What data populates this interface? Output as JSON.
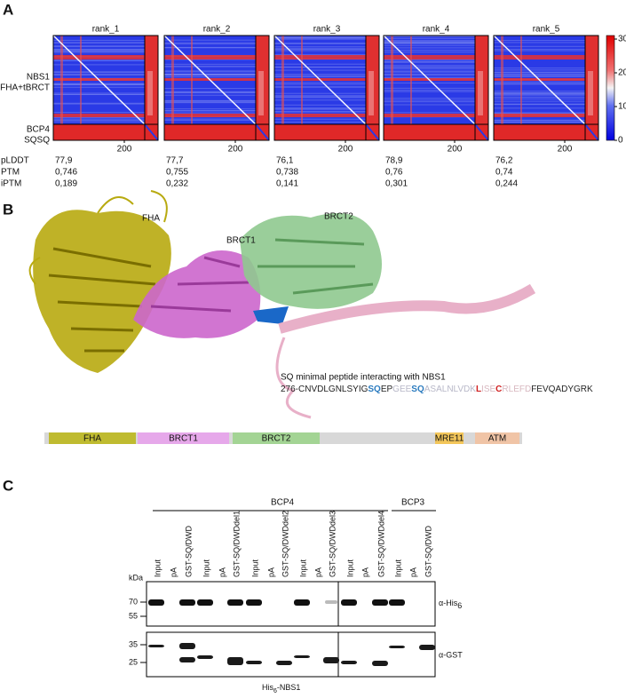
{
  "panel_a": {
    "letter": "A",
    "ranks": [
      {
        "name": "rank_1",
        "x_tick": "200",
        "plddt": "77,9",
        "ptm": "0,746",
        "iptm": "0,189"
      },
      {
        "name": "rank_2",
        "x_tick": "200",
        "plddt": "77,7",
        "ptm": "0,755",
        "iptm": "0,232"
      },
      {
        "name": "rank_3",
        "x_tick": "200",
        "plddt": "76,1",
        "ptm": "0,738",
        "iptm": "0,141"
      },
      {
        "name": "rank_4",
        "x_tick": "200",
        "plddt": "78,9",
        "ptm": "0,76",
        "iptm": "0,301"
      },
      {
        "name": "rank_5",
        "x_tick": "200",
        "plddt": "76,2",
        "ptm": "0,74",
        "iptm": "0,244"
      }
    ],
    "row_labels": {
      "nbs1": "NBS1",
      "fha": "FHA+tBRCT",
      "bcp4": "BCP4",
      "sqsq": "SQSQ"
    },
    "metrics": {
      "plddt": "pLDDT",
      "ptm": "PTM",
      "iptm": "iPTM"
    },
    "colorbar_ticks": [
      30,
      20,
      10,
      0
    ]
  },
  "panel_b": {
    "letter": "B",
    "structure_labels": {
      "fha": "FHA",
      "brct1": "BRCT1",
      "brct2": "BRCT2"
    },
    "peptide_title": "SQ minimal peptide interacting with NBS1",
    "sequence": [
      {
        "text": "276-CNVDLGNLSYIG",
        "color": "#222222",
        "bold": false
      },
      {
        "text": "SQ",
        "color": "#2b7bbf",
        "bold": true
      },
      {
        "text": "EP",
        "color": "#222222",
        "bold": false
      },
      {
        "text": "GEE",
        "color": "#b8b8c8",
        "bold": false
      },
      {
        "text": "SQ",
        "color": "#2b7bbf",
        "bold": true
      },
      {
        "text": "ASALNLVDK",
        "color": "#b8b8c8",
        "bold": false
      },
      {
        "text": "L",
        "color": "#d02020",
        "bold": true
      },
      {
        "text": "ISE",
        "color": "#d8b8c0",
        "bold": false
      },
      {
        "text": "C",
        "color": "#d02020",
        "bold": true
      },
      {
        "text": "RLEFD",
        "color": "#d8b8c0",
        "bold": false
      },
      {
        "text": "FEVQADYGRK",
        "color": "#222222",
        "bold": false
      }
    ],
    "domain_bar": [
      {
        "label": "FHA",
        "color": "#bfbb30"
      },
      {
        "label": "BRCT1",
        "color": "#e6a8ea"
      },
      {
        "label": "BRCT2",
        "color": "#a3d494"
      },
      {
        "label": "MRE11",
        "color": "#f3c65a"
      },
      {
        "label": "ATM",
        "color": "#f0c4a6"
      }
    ]
  },
  "panel_c": {
    "letter": "C",
    "groups": {
      "bcp4": "BCP4",
      "bcp3": "BCP3"
    },
    "lanes": [
      "Input",
      "pA",
      "GST-SQ/DWD",
      "Input",
      "pA",
      "GST-SQ/DWDdel1",
      "Input",
      "pA",
      "GST-SQ/DWDdel2",
      "Input",
      "pA",
      "GST-SQ/DWDdel3",
      "Input",
      "pA",
      "GST-SQ/DWDdel4",
      "Input",
      "pA",
      "GST-SQ/DWD"
    ],
    "kda": "kDa",
    "markers": [
      {
        "label": "70"
      },
      {
        "label": "55"
      },
      {
        "label": "35"
      },
      {
        "label": "25"
      }
    ],
    "antibody_his": {
      "label": "α-His",
      "sub": "6"
    },
    "antibody_gst": "α-GST",
    "bait": {
      "label": "His",
      "sub": "6",
      "rest": "-NBS1"
    }
  }
}
